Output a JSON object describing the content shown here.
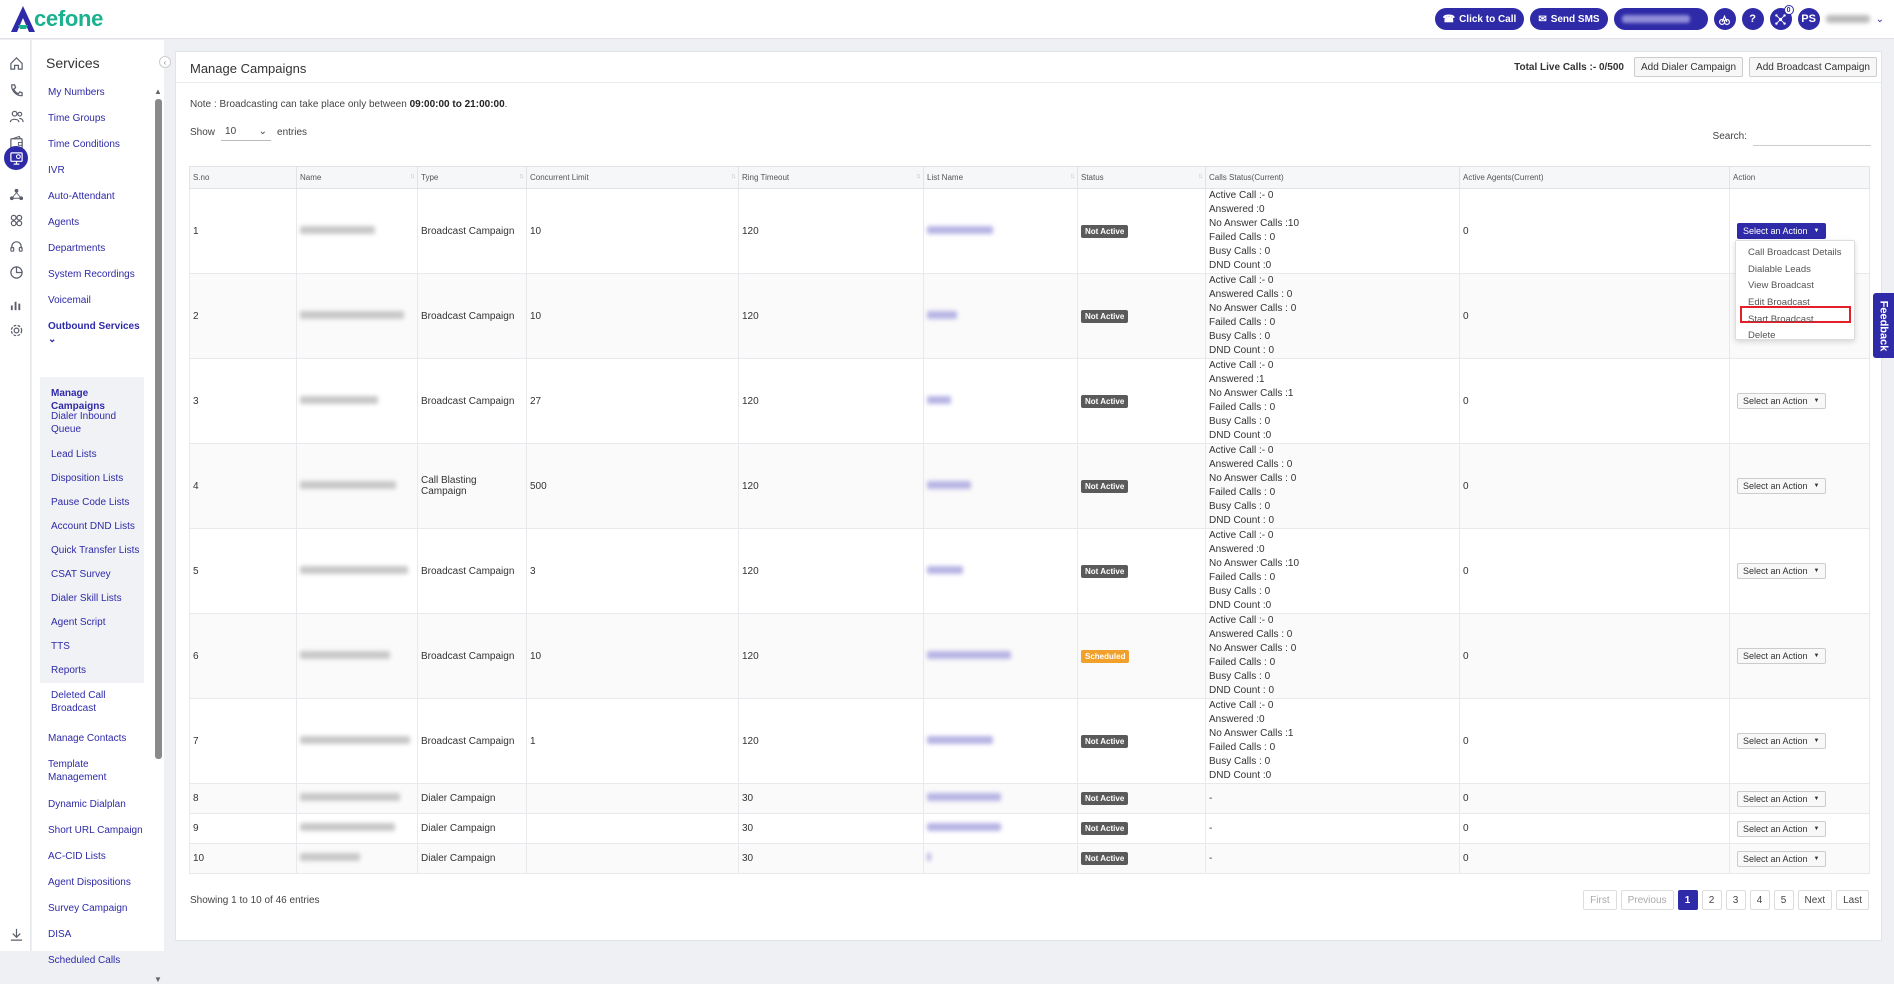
{
  "brand": {
    "logo_letter": "A",
    "logo_text": "cefone",
    "logo_color": "#1ab28e",
    "accent": "#2e2aa8"
  },
  "topbar": {
    "click_to_call": "Click to Call",
    "send_sms": "Send SMS",
    "notification_count": "0",
    "user_initials": "PS"
  },
  "sidebar": {
    "title": "Services",
    "items": [
      "My Numbers",
      "Time Groups",
      "Time Conditions",
      "IVR",
      "Auto-Attendant",
      "Agents",
      "Departments",
      "System Recordings",
      "Voicemail"
    ],
    "outbound": "Outbound Services",
    "sub_items": [
      "Manage Campaigns",
      "Dialer Inbound Queue",
      "Lead Lists",
      "Disposition Lists",
      "Pause Code Lists",
      "Account DND Lists",
      "Quick Transfer Lists",
      "CSAT Survey",
      "Dialer Skill Lists",
      "Agent Script",
      "TTS",
      "Reports",
      "Deleted Call Broadcast"
    ],
    "after_items": [
      "Manage Contacts",
      "Template Management",
      "Dynamic Dialplan",
      "Short URL Campaign",
      "AC-CID Lists",
      "Agent Dispositions",
      "Survey Campaign",
      "DISA",
      "Scheduled Calls"
    ]
  },
  "page": {
    "title": "Manage Campaigns",
    "total_live_calls": "Total Live Calls :- 0/500",
    "add_dialer": "Add Dialer Campaign",
    "add_broadcast": "Add Broadcast Campaign",
    "note_prefix": "Note : Broadcasting can take place only between ",
    "note_time": "09:00:00 to 21:00:00",
    "note_suffix": ".",
    "show_label": "Show",
    "show_value": "10",
    "entries_label": "entries",
    "search_label": "Search:"
  },
  "table": {
    "columns": [
      "S.no",
      "Name",
      "Type",
      "Concurrent Limit",
      "Ring Timeout",
      "List Name",
      "Status",
      "Calls Status(Current)",
      "Active Agents(Current)",
      "Action"
    ],
    "rows": [
      {
        "sno": "1",
        "type": "Broadcast Campaign",
        "limit": "10",
        "ring": "120",
        "status": "Not Active",
        "calls": [
          "Active Call :- 0",
          "Answered :0",
          "No Answer Calls :10",
          "Failed Calls : 0",
          "Busy Calls : 0",
          "DND Count :0"
        ],
        "agents": "0",
        "action": "Select an Action"
      },
      {
        "sno": "2",
        "type": "Broadcast Campaign",
        "limit": "10",
        "ring": "120",
        "status": "Not Active",
        "calls": [
          "Active Call :- 0",
          "Answered Calls : 0",
          "No Answer Calls : 0",
          "Failed Calls : 0",
          "Busy Calls : 0",
          "DND Count : 0"
        ],
        "agents": "0",
        "action": ""
      },
      {
        "sno": "3",
        "type": "Broadcast Campaign",
        "limit": "27",
        "ring": "120",
        "status": "Not Active",
        "calls": [
          "Active Call :- 0",
          "Answered :1",
          "No Answer Calls :1",
          "Failed Calls : 0",
          "Busy Calls : 0",
          "DND Count :0"
        ],
        "agents": "0",
        "action": "Select an Action"
      },
      {
        "sno": "4",
        "type": "Call Blasting Campaign",
        "limit": "500",
        "ring": "120",
        "status": "Not Active",
        "calls": [
          "Active Call :- 0",
          "Answered Calls : 0",
          "No Answer Calls : 0",
          "Failed Calls : 0",
          "Busy Calls : 0",
          "DND Count : 0"
        ],
        "agents": "0",
        "action": "Select an Action"
      },
      {
        "sno": "5",
        "type": "Broadcast Campaign",
        "limit": "3",
        "ring": "120",
        "status": "Not Active",
        "calls": [
          "Active Call :- 0",
          "Answered :0",
          "No Answer Calls :10",
          "Failed Calls : 0",
          "Busy Calls : 0",
          "DND Count :0"
        ],
        "agents": "0",
        "action": "Select an Action"
      },
      {
        "sno": "6",
        "type": "Broadcast Campaign",
        "limit": "10",
        "ring": "120",
        "status": "Scheduled",
        "calls": [
          "Active Call :- 0",
          "Answered Calls : 0",
          "No Answer Calls : 0",
          "Failed Calls : 0",
          "Busy Calls : 0",
          "DND Count : 0"
        ],
        "agents": "0",
        "action": "Select an Action"
      },
      {
        "sno": "7",
        "type": "Broadcast Campaign",
        "limit": "1",
        "ring": "120",
        "status": "Not Active",
        "calls": [
          "Active Call :- 0",
          "Answered :0",
          "No Answer Calls :1",
          "Failed Calls : 0",
          "Busy Calls : 0",
          "DND Count :0"
        ],
        "agents": "0",
        "action": "Select an Action"
      },
      {
        "sno": "8",
        "type": "Dialer Campaign",
        "limit": "",
        "ring": "30",
        "status": "Not Active",
        "calls": [
          "-"
        ],
        "agents": "0",
        "action": "Select an Action"
      },
      {
        "sno": "9",
        "type": "Dialer Campaign",
        "limit": "",
        "ring": "30",
        "status": "Not Active",
        "calls": [
          "-"
        ],
        "agents": "0",
        "action": "Select an Action"
      },
      {
        "sno": "10",
        "type": "Dialer Campaign",
        "limit": "",
        "ring": "30",
        "status": "Not Active",
        "calls": [
          "-"
        ],
        "agents": "0",
        "action": "Select an Action"
      }
    ]
  },
  "dropdown": {
    "items": [
      "Call Broadcast Details",
      "Dialable Leads",
      "View Broadcast",
      "Edit Broadcast",
      "Start Broadcast",
      "Delete"
    ],
    "highlighted": "Start Broadcast"
  },
  "feedback": "Feedback",
  "footer": {
    "showing": "Showing 1 to 10 of 46 entries",
    "pages": [
      "First",
      "Previous",
      "1",
      "2",
      "3",
      "4",
      "5",
      "Next",
      "Last"
    ],
    "current_page": "1"
  },
  "icons": {
    "rail": [
      "home-icon",
      "phone-icon",
      "users-icon",
      "wallet-icon",
      "services-icon",
      "network-icon",
      "integrations-icon",
      "headset-icon",
      "analytics-icon",
      "reports-icon",
      "settings-icon",
      "download-icon"
    ]
  }
}
